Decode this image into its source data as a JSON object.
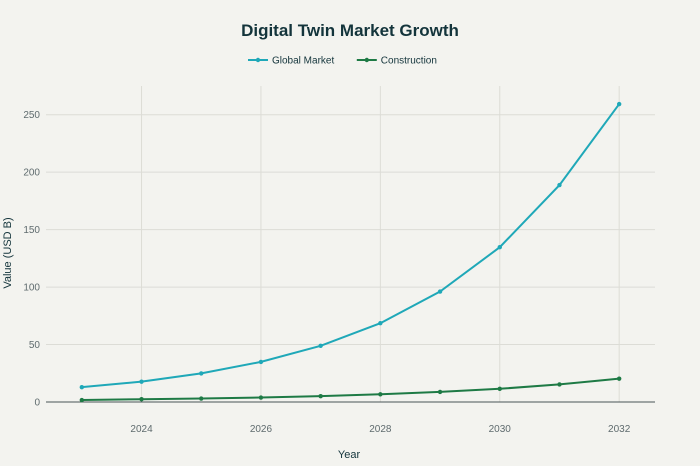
{
  "chart_data": {
    "type": "line",
    "title": "Digital Twin Market Growth",
    "xlabel": "Year",
    "ylabel": "Value (USD B)",
    "x": [
      2023,
      2024,
      2025,
      2026,
      2027,
      2028,
      2029,
      2030,
      2031,
      2032
    ],
    "x_ticks": [
      "2024",
      "2026",
      "2028",
      "2030",
      "2032"
    ],
    "y_ticks": [
      "0",
      "50",
      "100",
      "150",
      "200",
      "250"
    ],
    "xlim": [
      2022.4,
      2032.6
    ],
    "ylim": [
      0,
      275
    ],
    "grid": true,
    "legend_position": "top-center",
    "series": [
      {
        "name": "Global Market",
        "color": "#1fa8b8",
        "values": [
          12.9,
          17.7,
          24.9,
          34.9,
          48.9,
          68.6,
          96.1,
          134.7,
          188.8,
          259.3
        ]
      },
      {
        "name": "Construction",
        "color": "#1e7a45",
        "values": [
          1.7,
          2.4,
          3.0,
          3.9,
          5.1,
          6.7,
          8.8,
          11.5,
          15.3,
          20.3
        ]
      }
    ]
  }
}
